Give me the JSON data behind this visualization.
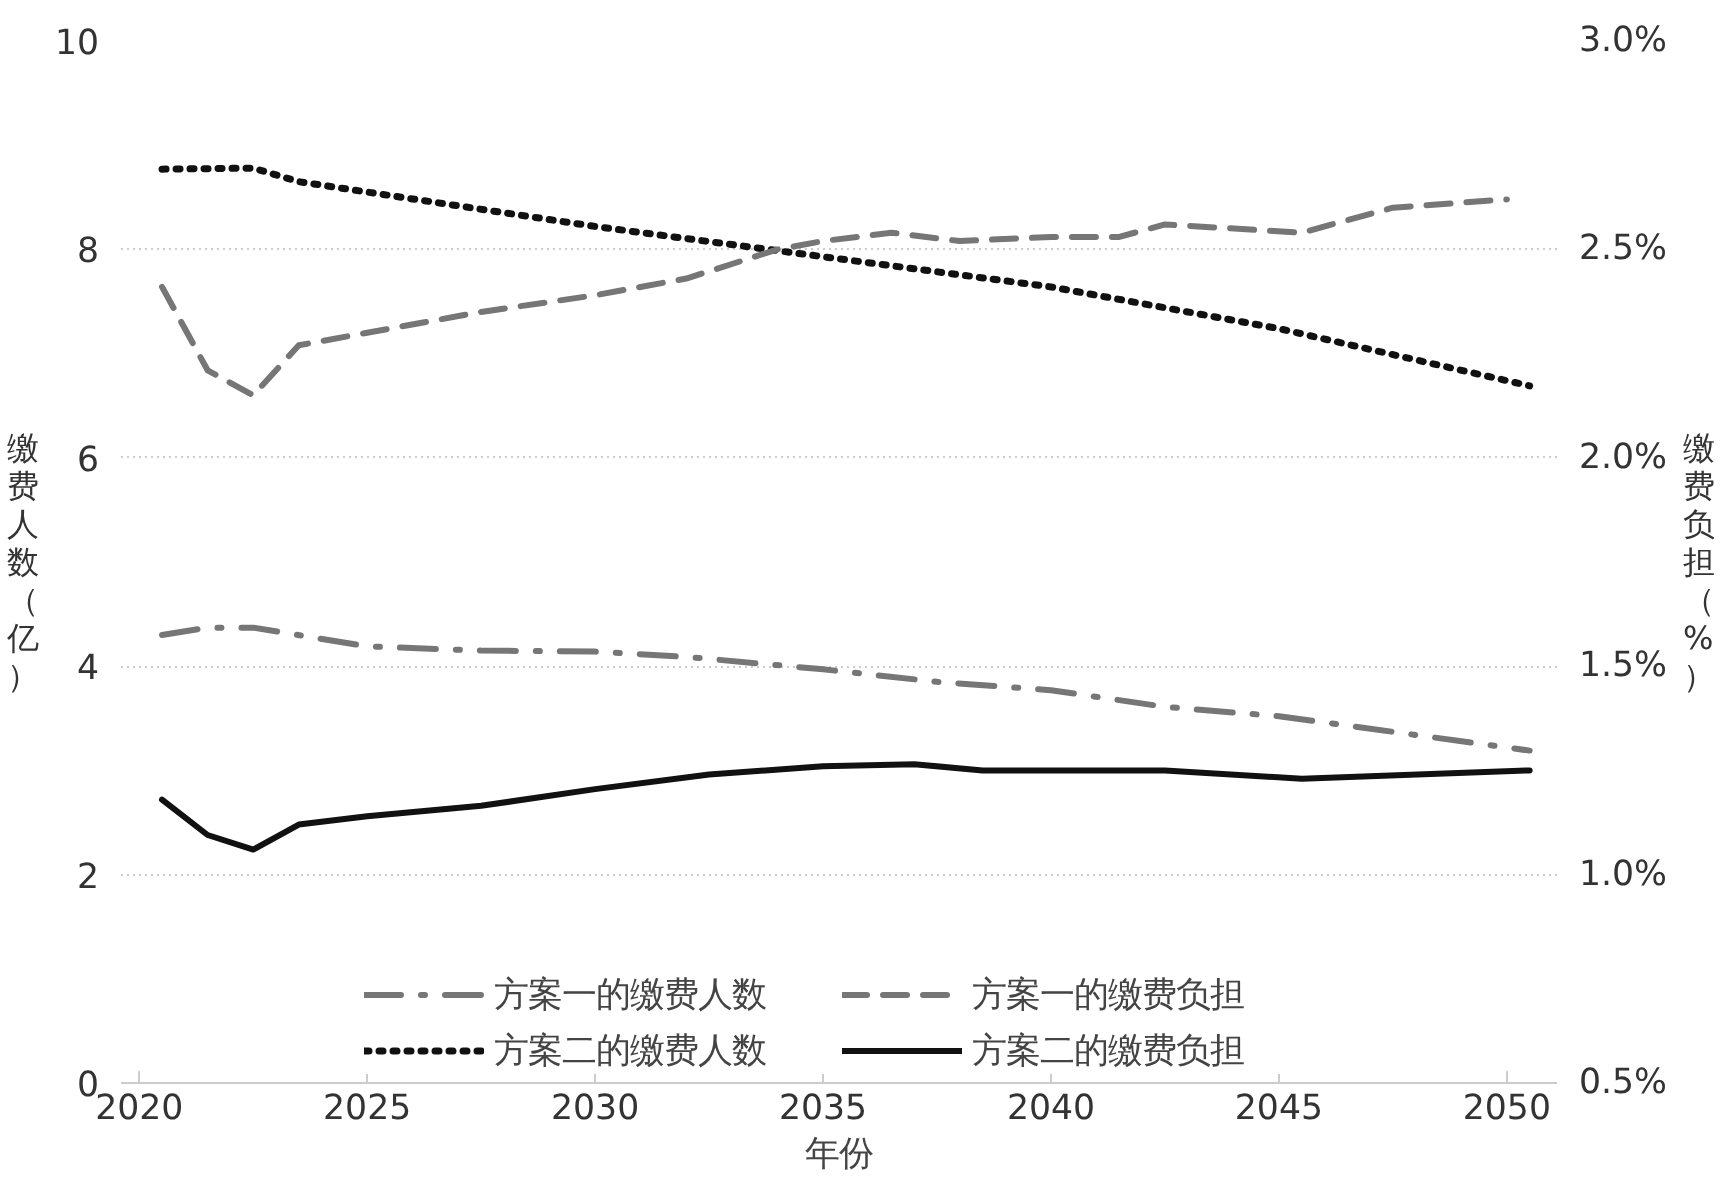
{
  "chart_data": {
    "type": "line",
    "xlabel": "年份",
    "ylabel": "缴费人数（亿）",
    "y2label": "缴费负担（%）",
    "xlim": [
      2019.6,
      2051.1
    ],
    "xticks": [
      2020,
      2025,
      2030,
      2035,
      2040,
      2045,
      2050
    ],
    "ylim": [
      0,
      10
    ],
    "yticks": [
      0,
      2,
      4,
      6,
      8,
      10
    ],
    "y2lim": [
      0.5,
      3.0
    ],
    "y2ticks": [
      {
        "value": 0.5,
        "label": "0.5%"
      },
      {
        "value": 1.0,
        "label": "1.0%"
      },
      {
        "value": 1.5,
        "label": "1.5%"
      },
      {
        "value": 2.0,
        "label": "2.0%"
      },
      {
        "value": 2.5,
        "label": "2.5%"
      },
      {
        "value": 3.0,
        "label": "3.0%"
      }
    ],
    "grid": "y",
    "legend": "bottom",
    "series": [
      {
        "name": "方案一的缴费人数",
        "color": "#767676",
        "line_style": "dashdot",
        "x": [
          2020.5,
          2021.5,
          2022.5,
          2025,
          2027.5,
          2030,
          2032,
          2035,
          2037.5,
          2040,
          2042.5,
          2045,
          2047.5,
          2050.5
        ],
        "values": [
          4.3,
          4.37,
          4.37,
          4.19,
          4.15,
          4.14,
          4.09,
          3.97,
          3.85,
          3.77,
          3.61,
          3.52,
          3.37,
          3.19
        ]
      },
      {
        "name": "方案二的缴费人数",
        "color": "#111111",
        "line_style": "dotted",
        "x": [
          2020.5,
          2022.5,
          2023.5,
          2025,
          2030,
          2035,
          2040,
          2045,
          2050.5
        ],
        "values": [
          8.77,
          8.78,
          8.65,
          8.55,
          8.22,
          7.93,
          7.64,
          7.24,
          6.69
        ]
      },
      {
        "name": "方案一的缴费负担",
        "color": "#767676",
        "line_style": "dashed",
        "axis": "y2",
        "x": [
          2020.5,
          2021.5,
          2022.5,
          2023.5,
          2025,
          2027.5,
          2030,
          2032,
          2034,
          2035,
          2036.5,
          2038,
          2040,
          2041.5,
          2042.5,
          2045.5,
          2047.5,
          2050
        ],
        "values": [
          2.41,
          2.21,
          2.15,
          2.27,
          2.3,
          2.35,
          2.39,
          2.43,
          2.5,
          2.52,
          2.54,
          2.52,
          2.53,
          2.53,
          2.56,
          2.54,
          2.6,
          2.62
        ]
      },
      {
        "name": "方案二的缴费负担",
        "color": "#111111",
        "line_style": "solid",
        "axis": "y2",
        "x": [
          2020.5,
          2021.5,
          2022.5,
          2023.5,
          2025,
          2027.5,
          2030,
          2032.5,
          2035,
          2037,
          2038.5,
          2042.5,
          2045.5,
          2050.5
        ],
        "values": [
          1.18,
          1.095,
          1.06,
          1.12,
          1.14,
          1.165,
          1.205,
          1.24,
          1.26,
          1.265,
          1.25,
          1.25,
          1.23,
          1.25
        ]
      }
    ]
  }
}
